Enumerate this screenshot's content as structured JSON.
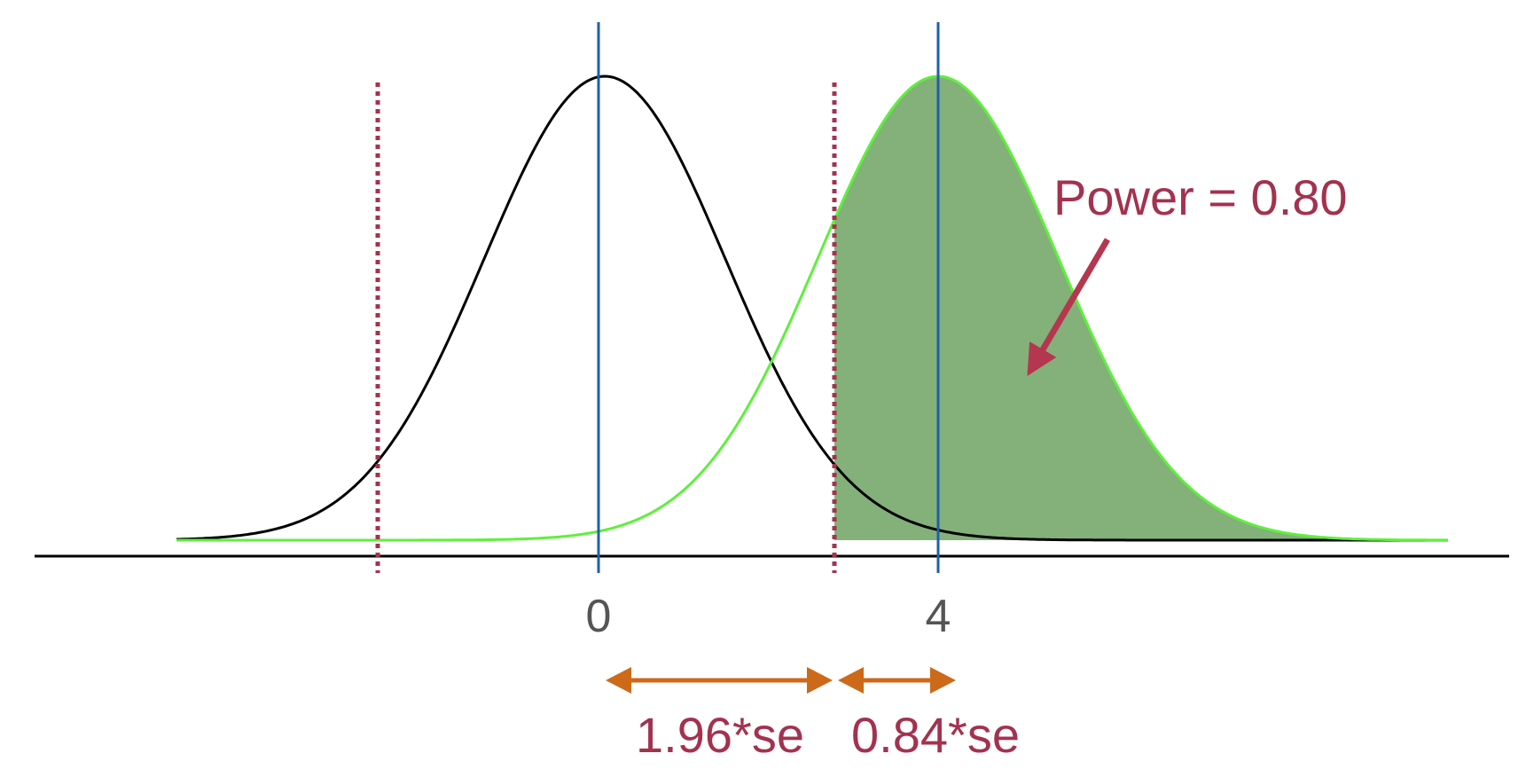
{
  "axis_labels": [
    "0",
    "4"
  ],
  "annotation": "Power = 0.80",
  "distance_labels": [
    "1.96*se",
    "0.84*se"
  ]
}
